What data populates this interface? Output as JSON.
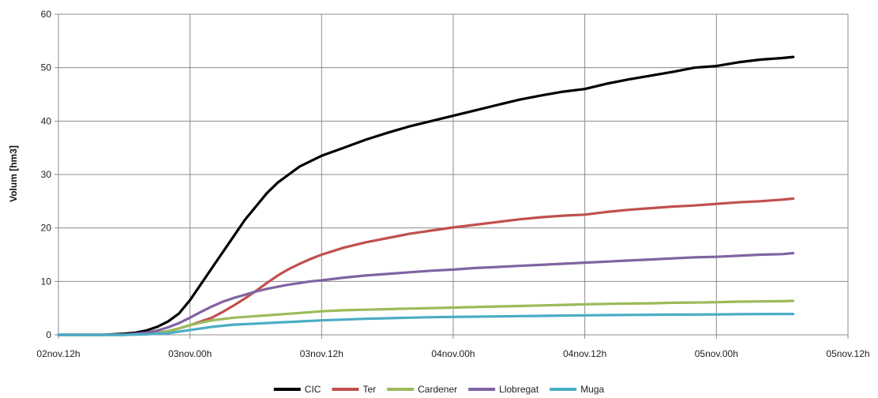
{
  "chart_data": {
    "type": "line",
    "title": "",
    "xlabel": "",
    "ylabel": "Volum [hm3]",
    "x_unit": "hours",
    "xlim": [
      0,
      72
    ],
    "ylim": [
      0,
      60
    ],
    "x_ticks": [
      {
        "value": 0,
        "label": "02nov.12h"
      },
      {
        "value": 12,
        "label": "03nov.00h"
      },
      {
        "value": 24,
        "label": "03nov.12h"
      },
      {
        "value": 36,
        "label": "04nov.00h"
      },
      {
        "value": 48,
        "label": "04nov.12h"
      },
      {
        "value": 60,
        "label": "05nov.00h"
      },
      {
        "value": 72,
        "label": "05nov.12h"
      }
    ],
    "y_ticks": [
      0,
      10,
      20,
      30,
      40,
      50,
      60
    ],
    "grid": true,
    "legend_position": "bottom",
    "series": [
      {
        "name": "CIC",
        "color": "#000000",
        "x": [
          0,
          4,
          6,
          7,
          8,
          9,
          10,
          11,
          12,
          13,
          14,
          15,
          16,
          17,
          18,
          19,
          20,
          21,
          22,
          23,
          24,
          26,
          28,
          30,
          32,
          34,
          36,
          38,
          40,
          42,
          44,
          46,
          48,
          50,
          52,
          54,
          56,
          58,
          60,
          62,
          64,
          66,
          67
        ],
        "y": [
          0,
          0,
          0.2,
          0.4,
          0.8,
          1.5,
          2.5,
          4,
          6.5,
          9.5,
          12.5,
          15.5,
          18.5,
          21.5,
          24,
          26.5,
          28.5,
          30,
          31.5,
          32.5,
          33.5,
          35,
          36.5,
          37.8,
          39,
          40,
          41,
          42,
          43,
          44,
          44.8,
          45.5,
          46,
          47,
          47.8,
          48.5,
          49.2,
          50,
          50.3,
          51,
          51.5,
          51.8,
          52
        ]
      },
      {
        "name": "Ter",
        "color": "#c0504d",
        "x": [
          0,
          6,
          8,
          9,
          10,
          11,
          12,
          14,
          15,
          16,
          17,
          18,
          19,
          20,
          21,
          22,
          23,
          24,
          26,
          28,
          30,
          32,
          34,
          36,
          38,
          40,
          42,
          44,
          46,
          48,
          50,
          52,
          54,
          56,
          58,
          60,
          62,
          64,
          66,
          67
        ],
        "y": [
          0,
          0,
          0.2,
          0.4,
          0.7,
          1.2,
          1.8,
          3.2,
          4.3,
          5.5,
          6.8,
          8.2,
          9.7,
          11.1,
          12.3,
          13.3,
          14.2,
          15,
          16.3,
          17.3,
          18.1,
          18.9,
          19.5,
          20.1,
          20.6,
          21.1,
          21.6,
          22.0,
          22.3,
          22.5,
          23.0,
          23.4,
          23.7,
          24.0,
          24.2,
          24.5,
          24.8,
          25.0,
          25.3,
          25.5
        ]
      },
      {
        "name": "Cardener",
        "color": "#9bbb59",
        "x": [
          0,
          6,
          8,
          9,
          10,
          11,
          12,
          13,
          14,
          16,
          18,
          20,
          22,
          24,
          26,
          28,
          30,
          32,
          34,
          36,
          38,
          40,
          42,
          44,
          46,
          48,
          50,
          52,
          54,
          56,
          58,
          60,
          62,
          64,
          66,
          67
        ],
        "y": [
          0,
          0,
          0.1,
          0.3,
          0.7,
          1.2,
          1.8,
          2.3,
          2.7,
          3.2,
          3.5,
          3.8,
          4.1,
          4.4,
          4.6,
          4.7,
          4.8,
          4.9,
          5.0,
          5.1,
          5.2,
          5.3,
          5.4,
          5.5,
          5.6,
          5.7,
          5.8,
          5.85,
          5.9,
          6.0,
          6.05,
          6.1,
          6.2,
          6.25,
          6.3,
          6.35
        ]
      },
      {
        "name": "Llobregat",
        "color": "#8064a2",
        "x": [
          0,
          6,
          7,
          8,
          9,
          10,
          11,
          12,
          13,
          14,
          15,
          16,
          17,
          18,
          19,
          20,
          21,
          22,
          23,
          24,
          26,
          28,
          30,
          32,
          34,
          36,
          38,
          40,
          42,
          44,
          46,
          48,
          50,
          52,
          54,
          56,
          58,
          60,
          62,
          64,
          66,
          67
        ],
        "y": [
          0,
          0,
          0.2,
          0.4,
          0.8,
          1.4,
          2.2,
          3.2,
          4.3,
          5.3,
          6.2,
          6.9,
          7.5,
          8.1,
          8.6,
          9.0,
          9.4,
          9.7,
          10.0,
          10.2,
          10.7,
          11.1,
          11.4,
          11.7,
          12.0,
          12.2,
          12.5,
          12.7,
          12.9,
          13.1,
          13.3,
          13.5,
          13.7,
          13.9,
          14.1,
          14.3,
          14.5,
          14.6,
          14.8,
          15.0,
          15.1,
          15.3
        ]
      },
      {
        "name": "Muga",
        "color": "#4bacc6",
        "x": [
          0,
          6,
          8,
          10,
          11,
          12,
          13,
          14,
          15,
          16,
          17,
          18,
          20,
          22,
          24,
          26,
          28,
          30,
          32,
          34,
          36,
          38,
          40,
          42,
          44,
          46,
          48,
          50,
          52,
          54,
          56,
          58,
          60,
          62,
          64,
          66,
          67
        ],
        "y": [
          0,
          0,
          0.1,
          0.3,
          0.6,
          0.9,
          1.2,
          1.5,
          1.7,
          1.9,
          2.0,
          2.1,
          2.3,
          2.5,
          2.7,
          2.85,
          3.0,
          3.1,
          3.2,
          3.3,
          3.35,
          3.4,
          3.45,
          3.5,
          3.55,
          3.6,
          3.65,
          3.7,
          3.72,
          3.75,
          3.78,
          3.8,
          3.82,
          3.85,
          3.88,
          3.9,
          3.9
        ]
      }
    ]
  }
}
